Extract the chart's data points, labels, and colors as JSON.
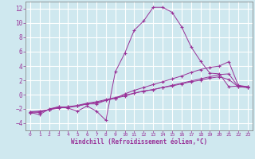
{
  "background_color": "#cfe8ef",
  "grid_color": "#ffffff",
  "line_color": "#993399",
  "xlabel": "Windchill (Refroidissement éolien,°C)",
  "xlim": [
    -0.5,
    23.5
  ],
  "ylim": [
    -5,
    13
  ],
  "yticks": [
    -4,
    -2,
    0,
    2,
    4,
    6,
    8,
    10,
    12
  ],
  "xticks": [
    0,
    1,
    2,
    3,
    4,
    5,
    6,
    7,
    8,
    9,
    10,
    11,
    12,
    13,
    14,
    15,
    16,
    17,
    18,
    19,
    20,
    21,
    22,
    23
  ],
  "series": [
    {
      "x": [
        0,
        1,
        2,
        3,
        4,
        5,
        6,
        7,
        8,
        9,
        10,
        11,
        12,
        13,
        14,
        15,
        16,
        17,
        18,
        19,
        20,
        21,
        22,
        23
      ],
      "y": [
        -2.5,
        -2.8,
        -2.0,
        -1.7,
        -1.9,
        -2.3,
        -1.6,
        -2.3,
        -3.6,
        3.2,
        5.8,
        9.0,
        10.3,
        12.2,
        12.2,
        11.5,
        9.5,
        6.7,
        4.7,
        3.0,
        2.9,
        1.1,
        1.2,
        1.1
      ]
    },
    {
      "x": [
        0,
        1,
        2,
        3,
        4,
        5,
        6,
        7,
        8,
        9,
        10,
        11,
        12,
        13,
        14,
        15,
        16,
        17,
        18,
        19,
        20,
        21,
        22,
        23
      ],
      "y": [
        -2.4,
        -2.5,
        -2.1,
        -1.7,
        -1.8,
        -1.6,
        -1.3,
        -1.3,
        -0.8,
        -0.5,
        0.1,
        0.6,
        1.0,
        1.4,
        1.8,
        2.2,
        2.6,
        3.1,
        3.5,
        3.8,
        4.0,
        4.6,
        1.3,
        1.1
      ]
    },
    {
      "x": [
        0,
        1,
        2,
        3,
        4,
        5,
        6,
        7,
        8,
        9,
        10,
        11,
        12,
        13,
        14,
        15,
        16,
        17,
        18,
        19,
        20,
        21,
        22,
        23
      ],
      "y": [
        -2.5,
        -2.4,
        -2.1,
        -1.8,
        -1.7,
        -1.6,
        -1.3,
        -1.1,
        -0.8,
        -0.5,
        -0.2,
        0.2,
        0.5,
        0.7,
        1.0,
        1.3,
        1.6,
        1.9,
        2.2,
        2.5,
        2.8,
        2.9,
        1.1,
        1.0
      ]
    },
    {
      "x": [
        0,
        1,
        2,
        3,
        4,
        5,
        6,
        7,
        8,
        9,
        10,
        11,
        12,
        13,
        14,
        15,
        16,
        17,
        18,
        19,
        20,
        21,
        22,
        23
      ],
      "y": [
        -2.4,
        -2.3,
        -2.1,
        -1.9,
        -1.7,
        -1.5,
        -1.2,
        -1.0,
        -0.7,
        -0.4,
        -0.1,
        0.2,
        0.5,
        0.7,
        1.0,
        1.2,
        1.5,
        1.8,
        2.0,
        2.3,
        2.5,
        2.1,
        1.1,
        1.0
      ]
    }
  ]
}
